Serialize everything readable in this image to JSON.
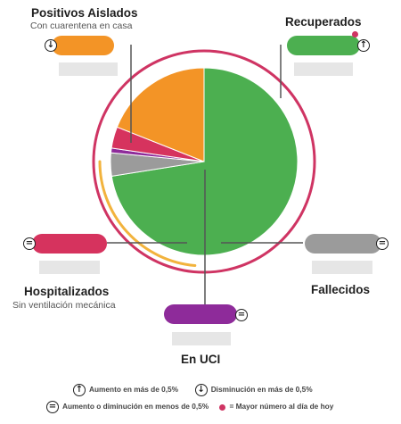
{
  "colors": {
    "recuperados": "#4caf50",
    "aislados": "#f39426",
    "hospitalizados": "#d6335e",
    "uci": "#8e2b9a",
    "fallecidos": "#9b9b9b",
    "ring": "#cf3463",
    "arc": "#f2b33d",
    "placeholder": "#e6e6e6"
  },
  "labels": {
    "aislados": {
      "title": "Positivos Aislados",
      "subtitle": "Con cuarentena en casa",
      "trend_icon": "arrow-down-icon"
    },
    "recuperados": {
      "title": "Recuperados",
      "trend_icon": "arrow-up-icon",
      "max_today": true
    },
    "hospitalizados": {
      "title": "Hospitalizados",
      "subtitle": "Sin ventilación mecánica",
      "trend_icon": "equal-icon"
    },
    "fallecidos": {
      "title": "Fallecidos",
      "trend_icon": "equal-icon"
    },
    "uci": {
      "title": "En UCI",
      "trend_icon": "equal-icon"
    }
  },
  "legend": {
    "up": "Aumento en más de 0,5%",
    "down": "Disminución en más de 0,5%",
    "equal": "Aumento o diminución en menos de 0,5%",
    "max": "= Mayor número al día de hoy"
  },
  "chart_data": {
    "type": "pie",
    "categories": [
      "Recuperados",
      "Fallecidos",
      "En UCI",
      "Hospitalizados",
      "Positivos Aislados"
    ],
    "values": [
      72.5,
      4.0,
      0.8,
      3.7,
      19.0
    ],
    "unit": "approx. % of total cases (estimated from slice angles)",
    "legend_placement": "around"
  }
}
